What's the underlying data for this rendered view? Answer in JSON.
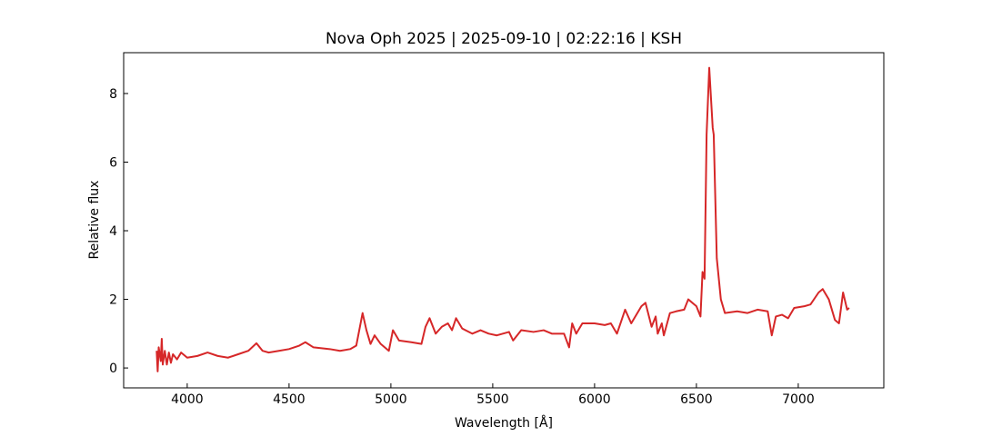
{
  "chart_data": {
    "type": "line",
    "title": "Nova Oph 2025 | 2025-09-10 | 02:22:16 | KSH",
    "x_label": "Wavelength [Å]",
    "y_label": "Relative flux",
    "x": [
      3850,
      3855,
      3860,
      3870,
      3875,
      3880,
      3890,
      3900,
      3910,
      3920,
      3930,
      3950,
      3970,
      4000,
      4050,
      4100,
      4150,
      4200,
      4250,
      4300,
      4340,
      4370,
      4400,
      4450,
      4500,
      4550,
      4580,
      4620,
      4700,
      4750,
      4800,
      4830,
      4861,
      4880,
      4900,
      4920,
      4950,
      4990,
      5010,
      5040,
      5100,
      5150,
      5170,
      5190,
      5220,
      5250,
      5280,
      5300,
      5320,
      5350,
      5400,
      5440,
      5480,
      5520,
      5550,
      5580,
      5600,
      5640,
      5700,
      5750,
      5790,
      5850,
      5875,
      5890,
      5910,
      5940,
      6000,
      6050,
      6080,
      6110,
      6150,
      6180,
      6230,
      6250,
      6280,
      6300,
      6310,
      6330,
      6340,
      6370,
      6400,
      6440,
      6460,
      6500,
      6520,
      6530,
      6540,
      6550,
      6563,
      6580,
      6585,
      6600,
      6620,
      6640,
      6700,
      6750,
      6800,
      6850,
      6870,
      6890,
      6920,
      6950,
      6980,
      7030,
      7060,
      7100,
      7120,
      7150,
      7180,
      7200,
      7220,
      7240,
      7250
    ],
    "series": [
      {
        "name": "Relative flux",
        "color": "#d62728",
        "values": [
          0.5,
          -0.1,
          0.6,
          0.2,
          0.85,
          0.1,
          0.5,
          0.1,
          0.45,
          0.15,
          0.4,
          0.25,
          0.45,
          0.3,
          0.35,
          0.45,
          0.35,
          0.3,
          0.4,
          0.5,
          0.72,
          0.5,
          0.45,
          0.5,
          0.55,
          0.65,
          0.75,
          0.6,
          0.55,
          0.5,
          0.55,
          0.65,
          1.6,
          1.1,
          0.7,
          0.95,
          0.7,
          0.5,
          1.1,
          0.8,
          0.75,
          0.7,
          1.2,
          1.45,
          1.0,
          1.2,
          1.3,
          1.1,
          1.45,
          1.15,
          1.0,
          1.1,
          1.0,
          0.95,
          1.0,
          1.05,
          0.8,
          1.1,
          1.05,
          1.1,
          1.0,
          1.0,
          0.6,
          1.3,
          1.0,
          1.3,
          1.3,
          1.25,
          1.3,
          1.0,
          1.7,
          1.3,
          1.8,
          1.9,
          1.2,
          1.5,
          1.0,
          1.3,
          0.95,
          1.6,
          1.65,
          1.7,
          2.0,
          1.8,
          1.5,
          2.8,
          2.6,
          6.8,
          8.75,
          7.0,
          6.8,
          3.2,
          2.0,
          1.6,
          1.65,
          1.6,
          1.7,
          1.65,
          0.95,
          1.5,
          1.55,
          1.45,
          1.75,
          1.8,
          1.85,
          2.2,
          2.3,
          2.0,
          1.4,
          1.3,
          2.2,
          1.7,
          1.75
        ]
      }
    ],
    "xlim": [
      3688,
      7420
    ],
    "ylim": [
      -0.58,
      9.19
    ],
    "xticks": [
      4000,
      4500,
      5000,
      5500,
      6000,
      6500,
      7000
    ],
    "yticks": [
      0,
      2,
      4,
      6,
      8
    ],
    "grid": false
  }
}
